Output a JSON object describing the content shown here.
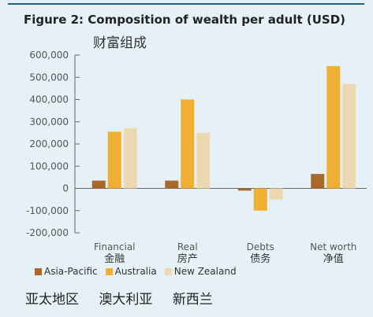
{
  "chart_data": {
    "type": "bar",
    "title": "Figure 2: Composition of wealth per adult (USD)",
    "subtitle": "财富组成",
    "categories": [
      "Financial",
      "Real",
      "Debts",
      "Net worth"
    ],
    "categories_cn": [
      "金融",
      "房产",
      "债务",
      "净值"
    ],
    "series": [
      {
        "name": "Asia-Pacific",
        "values": [
          35000,
          35000,
          -10000,
          65000
        ]
      },
      {
        "name": "Australia",
        "values": [
          255000,
          400000,
          -100000,
          550000
        ]
      },
      {
        "name": "New Zealand",
        "values": [
          270000,
          250000,
          -50000,
          470000
        ]
      }
    ],
    "series_names_cn": [
      "亚太地区",
      "澳大利亚",
      "新西兰"
    ],
    "ylim": [
      -200000,
      600000
    ],
    "yticks": [
      -200000,
      -100000,
      0,
      100000,
      200000,
      300000,
      400000,
      500000,
      600000
    ],
    "ytick_labels": [
      "-200,000",
      "-100,000",
      "0",
      "100,000",
      "200,000",
      "300,000",
      "400,000",
      "500,000",
      "600,000"
    ],
    "grid": false,
    "legend_position": "bottom-left",
    "colors": [
      "#a9692b",
      "#f0ae32",
      "#ecd9b2"
    ]
  }
}
